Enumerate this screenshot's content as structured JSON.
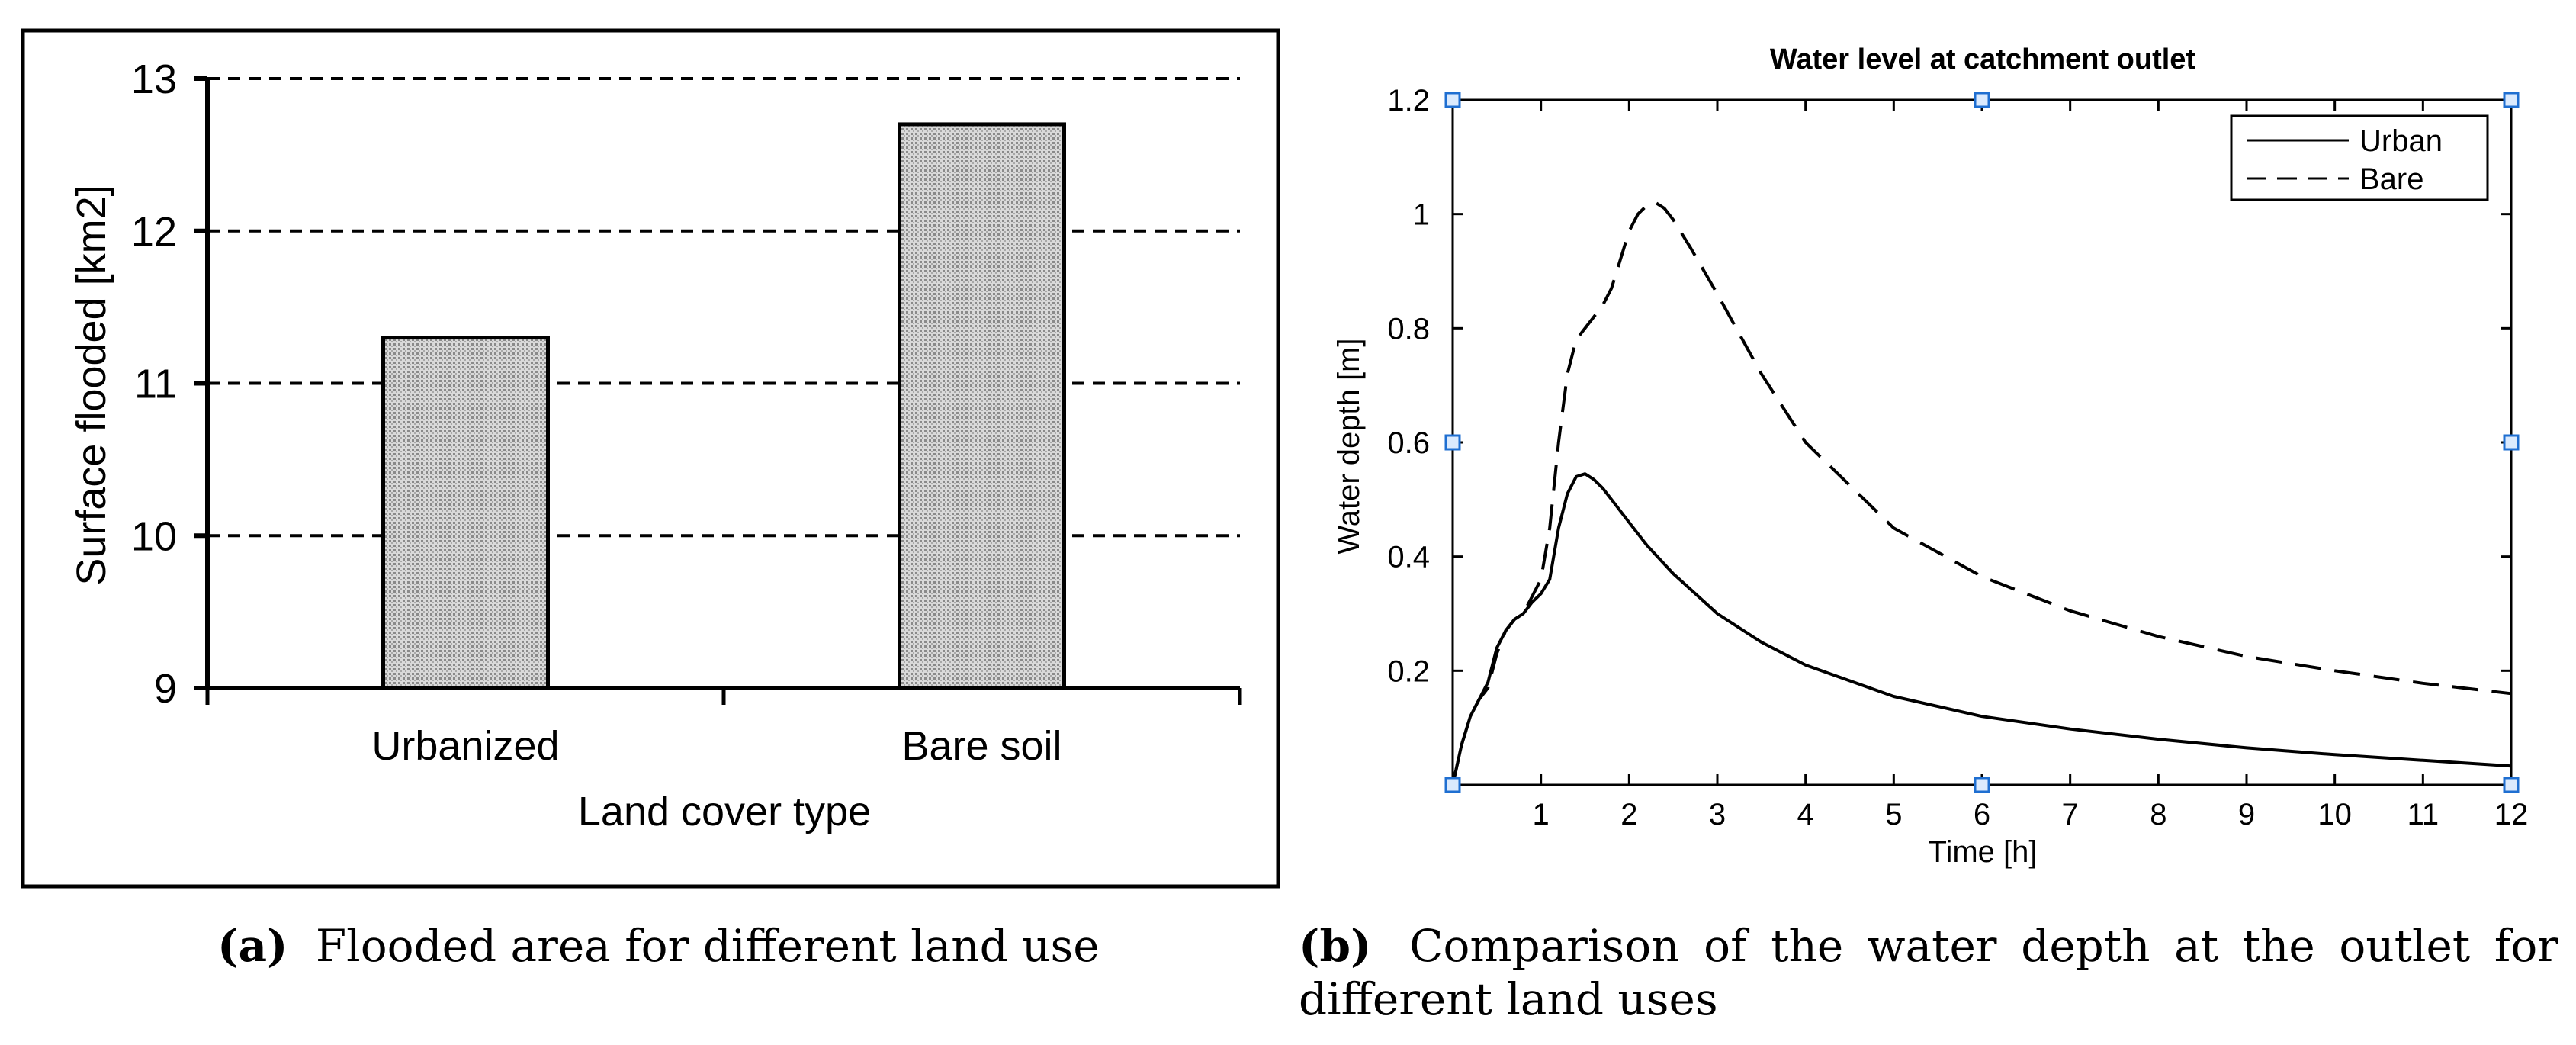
{
  "chart_data": [
    {
      "type": "bar",
      "title": "",
      "categories": [
        "Urbanized",
        "Bare soil"
      ],
      "values": [
        11.3,
        12.7
      ],
      "xlabel": "Land cover type",
      "ylabel": "Surface flooded [km2]",
      "ylim": [
        9,
        13
      ],
      "yticks": [
        "9",
        "10",
        "11",
        "12",
        "13"
      ],
      "grid": "dashed horizontal",
      "caption_label": "(a)",
      "caption": "Flooded area for different land use"
    },
    {
      "type": "line",
      "title": "Water level at catchment outlet",
      "xlabel": "Time [h]",
      "ylabel": "Water depth [m]",
      "xlim": [
        0,
        12
      ],
      "ylim": [
        0,
        1.2
      ],
      "xticks": [
        "1",
        "2",
        "3",
        "4",
        "5",
        "6",
        "7",
        "8",
        "9",
        "10",
        "11",
        "12"
      ],
      "yticks": [
        "0.2",
        "0.4",
        "0.6",
        "0.8",
        "1",
        "1.2"
      ],
      "legend_position": "top-right",
      "series": [
        {
          "name": "Urban",
          "style": "solid",
          "x": [
            0,
            0.1,
            0.2,
            0.3,
            0.4,
            0.5,
            0.6,
            0.7,
            0.8,
            0.9,
            1.0,
            1.1,
            1.2,
            1.3,
            1.4,
            1.5,
            1.6,
            1.7,
            1.8,
            2.0,
            2.2,
            2.5,
            3.0,
            3.5,
            4.0,
            5.0,
            6.0,
            7.0,
            8.0,
            9.0,
            10.0,
            11.0,
            12.0
          ],
          "y": [
            0.0,
            0.07,
            0.12,
            0.15,
            0.18,
            0.24,
            0.27,
            0.29,
            0.3,
            0.32,
            0.335,
            0.36,
            0.45,
            0.51,
            0.54,
            0.545,
            0.535,
            0.52,
            0.5,
            0.46,
            0.42,
            0.37,
            0.3,
            0.25,
            0.21,
            0.155,
            0.12,
            0.098,
            0.08,
            0.065,
            0.053,
            0.043,
            0.033
          ]
        },
        {
          "name": "Bare",
          "style": "dashed",
          "x": [
            0,
            0.1,
            0.2,
            0.3,
            0.4,
            0.5,
            0.6,
            0.7,
            0.8,
            0.9,
            1.0,
            1.1,
            1.2,
            1.3,
            1.4,
            1.5,
            1.6,
            1.7,
            1.8,
            1.9,
            2.0,
            2.1,
            2.2,
            2.3,
            2.4,
            2.5,
            2.7,
            3.0,
            3.5,
            4.0,
            5.0,
            6.0,
            7.0,
            8.0,
            9.0,
            10.0,
            11.0,
            12.0
          ],
          "y": [
            0.0,
            0.07,
            0.12,
            0.15,
            0.17,
            0.23,
            0.27,
            0.29,
            0.3,
            0.33,
            0.36,
            0.45,
            0.6,
            0.72,
            0.78,
            0.8,
            0.82,
            0.84,
            0.87,
            0.92,
            0.97,
            1.0,
            1.015,
            1.02,
            1.01,
            0.99,
            0.94,
            0.86,
            0.72,
            0.6,
            0.45,
            0.365,
            0.305,
            0.26,
            0.225,
            0.2,
            0.178,
            0.16
          ]
        }
      ],
      "caption_label": "(b)",
      "caption": "Comparison of the water depth at the outlet for different land uses"
    }
  ]
}
